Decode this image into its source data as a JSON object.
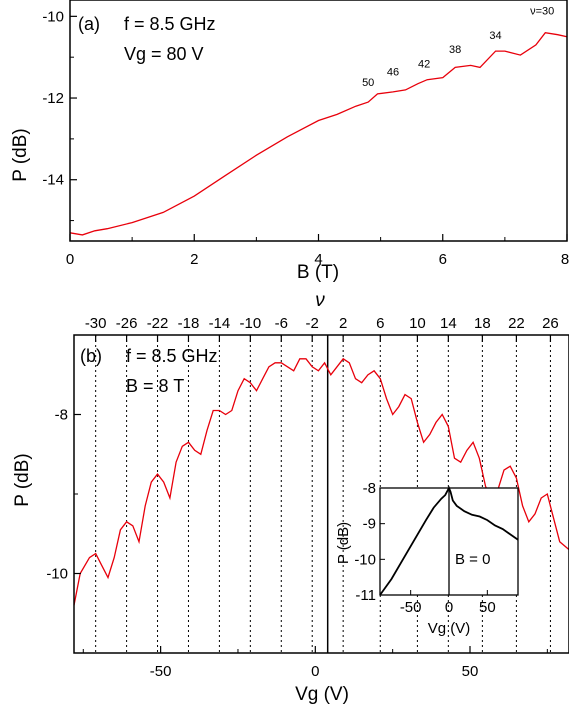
{
  "chart_data": [
    {
      "panel": "(a)",
      "type": "line",
      "annotations": {
        "f": "f = 8.5 GHz",
        "vg": "Vg = 80 V"
      },
      "xlabel": "B (T)",
      "ylabel": "P (dB)",
      "xlim": [
        0,
        8
      ],
      "ylim": [
        -15.5,
        -9.6
      ],
      "xticks": [
        "0",
        "2",
        "4",
        "6",
        "8"
      ],
      "yticks": [
        "-10",
        "-12",
        "-14"
      ],
      "series": [
        {
          "color": "#e8000b",
          "x": [
            0,
            0.2,
            0.4,
            0.6,
            1.0,
            1.5,
            2.0,
            2.5,
            3.0,
            3.5,
            4.0,
            4.3,
            4.6,
            4.8,
            4.95,
            5.2,
            5.4,
            5.6,
            5.75,
            6.0,
            6.2,
            6.45,
            6.6,
            6.85,
            7.0,
            7.25,
            7.5,
            7.65,
            7.85,
            8.0
          ],
          "y": [
            -15.3,
            -15.35,
            -15.25,
            -15.2,
            -15.05,
            -14.8,
            -14.4,
            -13.9,
            -13.4,
            -12.95,
            -12.55,
            -12.4,
            -12.2,
            -12.1,
            -11.9,
            -11.85,
            -11.8,
            -11.65,
            -11.55,
            -11.5,
            -11.25,
            -11.2,
            -11.25,
            -10.85,
            -10.85,
            -10.95,
            -10.7,
            -10.4,
            -10.45,
            -10.5
          ]
        }
      ],
      "nu_labels": [
        {
          "label": "50",
          "x": 4.8,
          "y": -11.85
        },
        {
          "label": "46",
          "x": 5.2,
          "y": -11.6
        },
        {
          "label": "42",
          "x": 5.7,
          "y": -11.4
        },
        {
          "label": "38",
          "x": 6.2,
          "y": -11.05
        },
        {
          "label": "34",
          "x": 6.85,
          "y": -10.7
        },
        {
          "label": "ν=30",
          "x": 7.6,
          "y": -10.1
        }
      ]
    },
    {
      "panel": "(b)",
      "type": "line",
      "annotations": {
        "f": "f = 8.5 GHz",
        "b": "B = 8 T"
      },
      "xlabel": "Vg (V)",
      "ylabel": "P (dB)",
      "top_label": "ν",
      "xlim": [
        -78,
        82
      ],
      "ylim": [
        -11.0,
        -7.0
      ],
      "xticks": [
        "-50",
        "0",
        "50"
      ],
      "yticks": [
        "-8",
        "-10"
      ],
      "top_ticks": [
        "-30",
        "-26",
        "-22",
        "-18",
        "-14",
        "-10",
        "-6",
        "-2",
        "2",
        "6",
        "10",
        "14",
        "18",
        "22",
        "26"
      ],
      "top_tick_vg": [
        -71,
        -61,
        -51,
        -41,
        -31,
        -21,
        -11,
        -1,
        9,
        21,
        33,
        43,
        54,
        65,
        76
      ],
      "dirac_vg": 4,
      "series": [
        {
          "color": "#e8000b",
          "x": [
            -78,
            -76,
            -73,
            -71,
            -69,
            -67,
            -65,
            -63,
            -61,
            -59,
            -57,
            -55,
            -53,
            -51,
            -49,
            -47,
            -45,
            -43,
            -41,
            -39,
            -37,
            -35,
            -33,
            -31,
            -29,
            -27,
            -25,
            -23,
            -21,
            -19,
            -17,
            -15,
            -13,
            -11,
            -9,
            -7,
            -5,
            -3,
            -1,
            1,
            3,
            5,
            7,
            9,
            11,
            13,
            15,
            17,
            19,
            21,
            23,
            25,
            27,
            29,
            31,
            33,
            35,
            37,
            39,
            41,
            43,
            45,
            47,
            49,
            51,
            53,
            55,
            57,
            59,
            61,
            63,
            65,
            67,
            69,
            71,
            73,
            75,
            77,
            79,
            82
          ],
          "y": [
            -10.4,
            -10.0,
            -9.8,
            -9.75,
            -9.9,
            -10.05,
            -9.8,
            -9.45,
            -9.35,
            -9.4,
            -9.6,
            -9.15,
            -8.85,
            -8.75,
            -8.85,
            -9.05,
            -8.6,
            -8.4,
            -8.35,
            -8.45,
            -8.5,
            -8.2,
            -7.95,
            -7.95,
            -8.0,
            -7.95,
            -7.7,
            -7.55,
            -7.6,
            -7.7,
            -7.55,
            -7.4,
            -7.35,
            -7.35,
            -7.4,
            -7.45,
            -7.3,
            -7.3,
            -7.4,
            -7.45,
            -7.35,
            -7.5,
            -7.4,
            -7.3,
            -7.35,
            -7.55,
            -7.6,
            -7.5,
            -7.45,
            -7.55,
            -7.8,
            -8.0,
            -7.9,
            -7.75,
            -7.8,
            -8.1,
            -8.35,
            -8.25,
            -8.1,
            -8.0,
            -8.15,
            -8.55,
            -8.6,
            -8.45,
            -8.35,
            -8.55,
            -8.9,
            -9.1,
            -8.95,
            -8.7,
            -8.65,
            -8.8,
            -9.15,
            -9.35,
            -9.25,
            -9.05,
            -9.0,
            -9.3,
            -9.6,
            -9.7
          ]
        }
      ],
      "inset": {
        "type": "line",
        "label": "B = 0",
        "xlabel": "Vg (V)",
        "ylabel": "P (dB)",
        "xlim": [
          -90,
          90
        ],
        "ylim": [
          -11,
          -8
        ],
        "xticks": [
          "-50",
          "0",
          "50"
        ],
        "yticks": [
          "-8",
          "-9",
          "-10",
          "-11"
        ],
        "series": [
          {
            "color": "#000000",
            "x": [
              -90,
              -75,
              -60,
              -45,
              -30,
              -20,
              -10,
              -5,
              0,
              2,
              5,
              10,
              20,
              30,
              40,
              50,
              60,
              70,
              80,
              90
            ],
            "y": [
              -11.0,
              -10.55,
              -10.0,
              -9.45,
              -8.9,
              -8.55,
              -8.3,
              -8.2,
              -8.0,
              -8.1,
              -8.35,
              -8.5,
              -8.65,
              -8.75,
              -8.8,
              -8.9,
              -9.05,
              -9.15,
              -9.3,
              -9.45
            ]
          }
        ]
      }
    }
  ]
}
